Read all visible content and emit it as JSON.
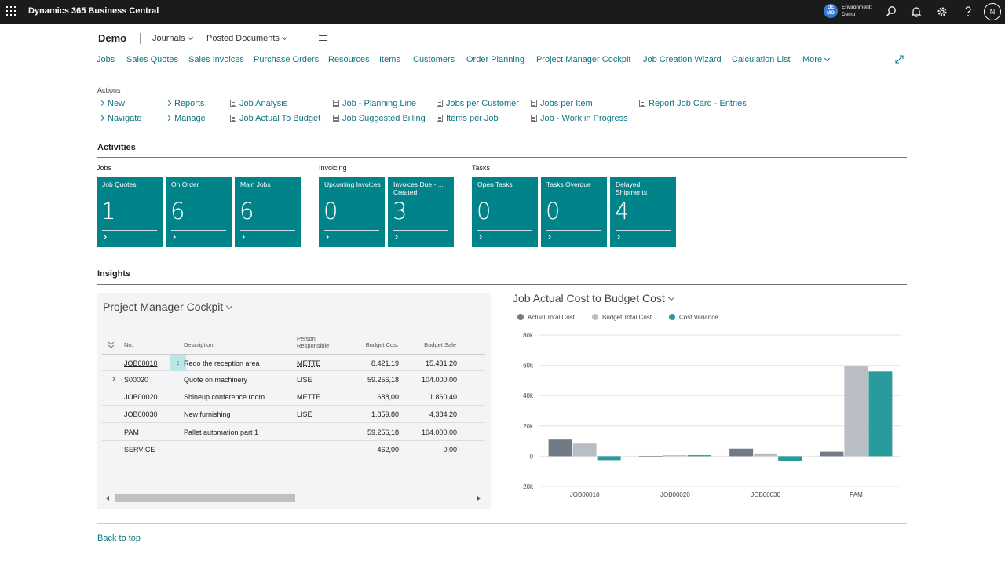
{
  "topbar": {
    "app_title": "Dynamics 365 Business Central",
    "env_badge": "DE MO",
    "env_label": "Environment:",
    "env_name": "Demo",
    "avatar": "N",
    "icons": [
      "waffle-icon",
      "search-icon",
      "bell-icon",
      "gear-icon",
      "help-icon"
    ]
  },
  "header": {
    "company": "Demo",
    "menu": [
      "Journals",
      "Posted Documents"
    ]
  },
  "nav": [
    "Jobs",
    "Sales Quotes",
    "Sales Invoices",
    "Purchase Orders",
    "Resources",
    "Items",
    "Customers",
    "Order Planning",
    "Project Manager Cockpit",
    "Job Creation Wizard",
    "Calculation List"
  ],
  "nav_more": "More",
  "actions": {
    "label": "Actions",
    "items": [
      "New",
      "Navigate",
      "Reports",
      "Manage",
      "Job Analysis",
      "Job Actual To Budget",
      "Job - Planning Line",
      "Job Suggested Billing",
      "Jobs per Customer",
      "Items per Job",
      "Jobs per Item",
      "Job - Work in Progress",
      "Report Job Card - Entries"
    ]
  },
  "activities": {
    "title": "Activities",
    "groups": [
      "Jobs",
      "Invoicing",
      "Tasks"
    ],
    "cues": [
      {
        "label": "Job Quotes",
        "value": "1"
      },
      {
        "label": "On Order",
        "value": "6"
      },
      {
        "label": "Main Jobs",
        "value": "6"
      },
      {
        "label": "Upcoming Invoices",
        "value": "0"
      },
      {
        "label": "Invoices Due - ... Created",
        "value": "3"
      },
      {
        "label": "Open Tasks",
        "value": "0"
      },
      {
        "label": "Tasks Overdue",
        "value": "0"
      },
      {
        "label": "Delayed Shipments",
        "value": "4"
      }
    ]
  },
  "insights": {
    "title": "Insights"
  },
  "pmc": {
    "title": "Project Manager Cockpit",
    "columns": [
      "No.",
      "Description",
      "Person Responsible",
      "Budget Cost",
      "Budget Sale"
    ],
    "rows": [
      {
        "no": "JOB00010",
        "desc": "Redo the reception area",
        "person": "METTE",
        "cost": "8.421,19",
        "sale": "15.431,20"
      },
      {
        "no": "S00020",
        "desc": "Quote on machinery",
        "person": "LISE",
        "cost": "59.256,18",
        "sale": "104.000,00"
      },
      {
        "no": "JOB00020",
        "desc": "Shineup conference room",
        "person": "METTE",
        "cost": "688,00",
        "sale": "1.860,40"
      },
      {
        "no": "JOB00030",
        "desc": "New furnishing",
        "person": "LISE",
        "cost": "1.859,80",
        "sale": "4.384,20"
      },
      {
        "no": "PAM",
        "desc": "Pallet automation part 1",
        "person": "",
        "cost": "59.256,18",
        "sale": "104.000,00"
      },
      {
        "no": "SERVICE",
        "desc": "",
        "person": "",
        "cost": "462,00",
        "sale": "0,00"
      }
    ]
  },
  "chart_title": "Job Actual Cost to Budget Cost",
  "chart_data": {
    "type": "bar",
    "title": "Job Actual Cost to Budget Cost",
    "categories": [
      "JOB00010",
      "JOB00020",
      "JOB00030",
      "PAM"
    ],
    "series": [
      {
        "name": "Actual Total Cost",
        "color": "#707b87",
        "values": [
          11000,
          0,
          5000,
          3000
        ]
      },
      {
        "name": "Budget Total Cost",
        "color": "#b9bdc4",
        "values": [
          8421,
          688,
          1860,
          59256
        ]
      },
      {
        "name": "Cost Variance",
        "color": "#2a9b9d",
        "values": [
          -2600,
          700,
          -3200,
          56000
        ]
      }
    ],
    "ylim": [
      -20000,
      80000
    ],
    "yticks": [
      "80k",
      "60k",
      "40k",
      "20k",
      "0",
      "-20k"
    ],
    "grid": true,
    "legend": "top-left"
  },
  "footer": {
    "back_to_top": "Back to top"
  }
}
